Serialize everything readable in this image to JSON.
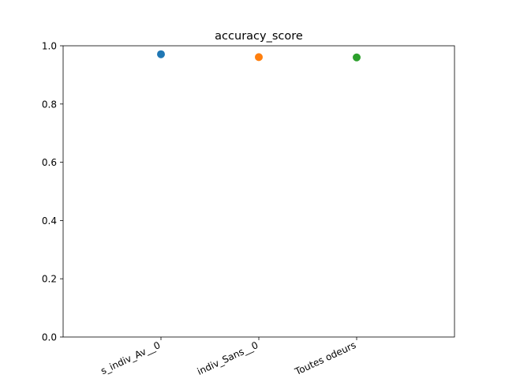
{
  "chart_data": {
    "type": "scatter",
    "title": "accuracy_score",
    "xlabel": "",
    "ylabel": "",
    "categories": [
      "s_indiv_Av__0",
      "indiv_Sans__0",
      "Toutes odeurs"
    ],
    "series": [
      {
        "values": [
          0.971,
          null,
          null
        ],
        "color": "#1f77b4"
      },
      {
        "values": [
          null,
          0.961,
          null
        ],
        "color": "#ff7f0e"
      },
      {
        "values": [
          null,
          null,
          0.96
        ],
        "color": "#2ca02c"
      }
    ],
    "ylim": [
      0,
      1
    ],
    "yticks": [
      "0.0",
      "0.2",
      "0.4",
      "0.6",
      "0.8",
      "1.0"
    ],
    "grid": false,
    "legend": "none"
  }
}
